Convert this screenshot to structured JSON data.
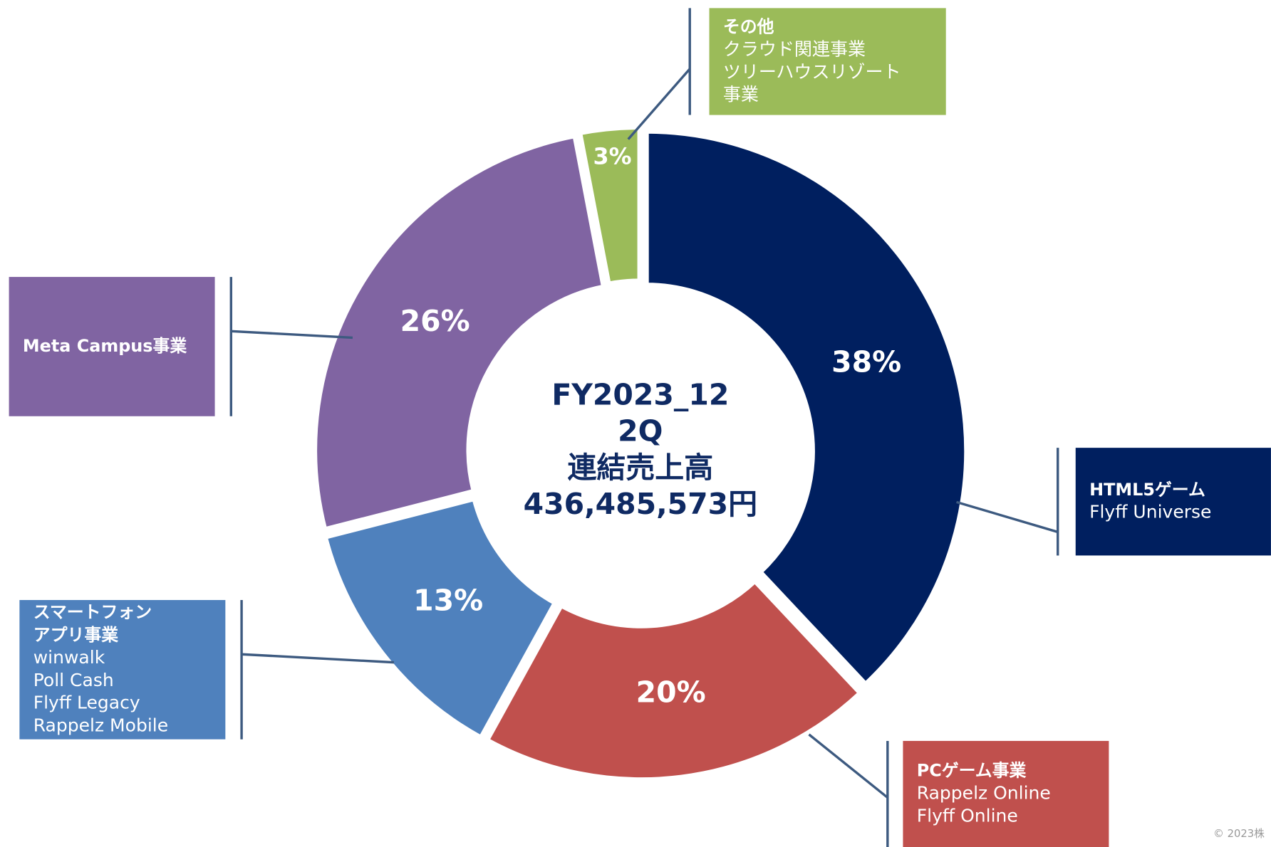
{
  "chart_data": {
    "type": "donut",
    "center_text": [
      "FY2023_12",
      "2Q",
      "連結売上高",
      "436,485,573円"
    ],
    "values": [
      38,
      20,
      13,
      26,
      3
    ],
    "value_labels": [
      "38%",
      "20%",
      "13%",
      "26%",
      "3%"
    ],
    "colors": [
      "#001f5f",
      "#c0504d",
      "#4f81bd",
      "#8064a2",
      "#9bbb59"
    ],
    "labels": [
      {
        "title": [
          "HTML5ゲーム"
        ],
        "details": [
          "Flyff Universe"
        ]
      },
      {
        "title": [
          "PCゲーム事業"
        ],
        "details": [
          "Rappelz Online",
          "Flyff Online"
        ]
      },
      {
        "title": [
          "スマートフォン",
          "アプリ事業"
        ],
        "details": [
          "winwalk",
          "Poll Cash",
          "Flyff Legacy",
          "Rappelz Mobile"
        ]
      },
      {
        "title": [
          "Meta Campus事業"
        ],
        "details": []
      },
      {
        "title": [
          "その他"
        ],
        "details": [
          "クラウド関連事業",
          "ツリーハウスリゾート",
          "事業"
        ]
      }
    ],
    "footer": "© 2023株"
  }
}
